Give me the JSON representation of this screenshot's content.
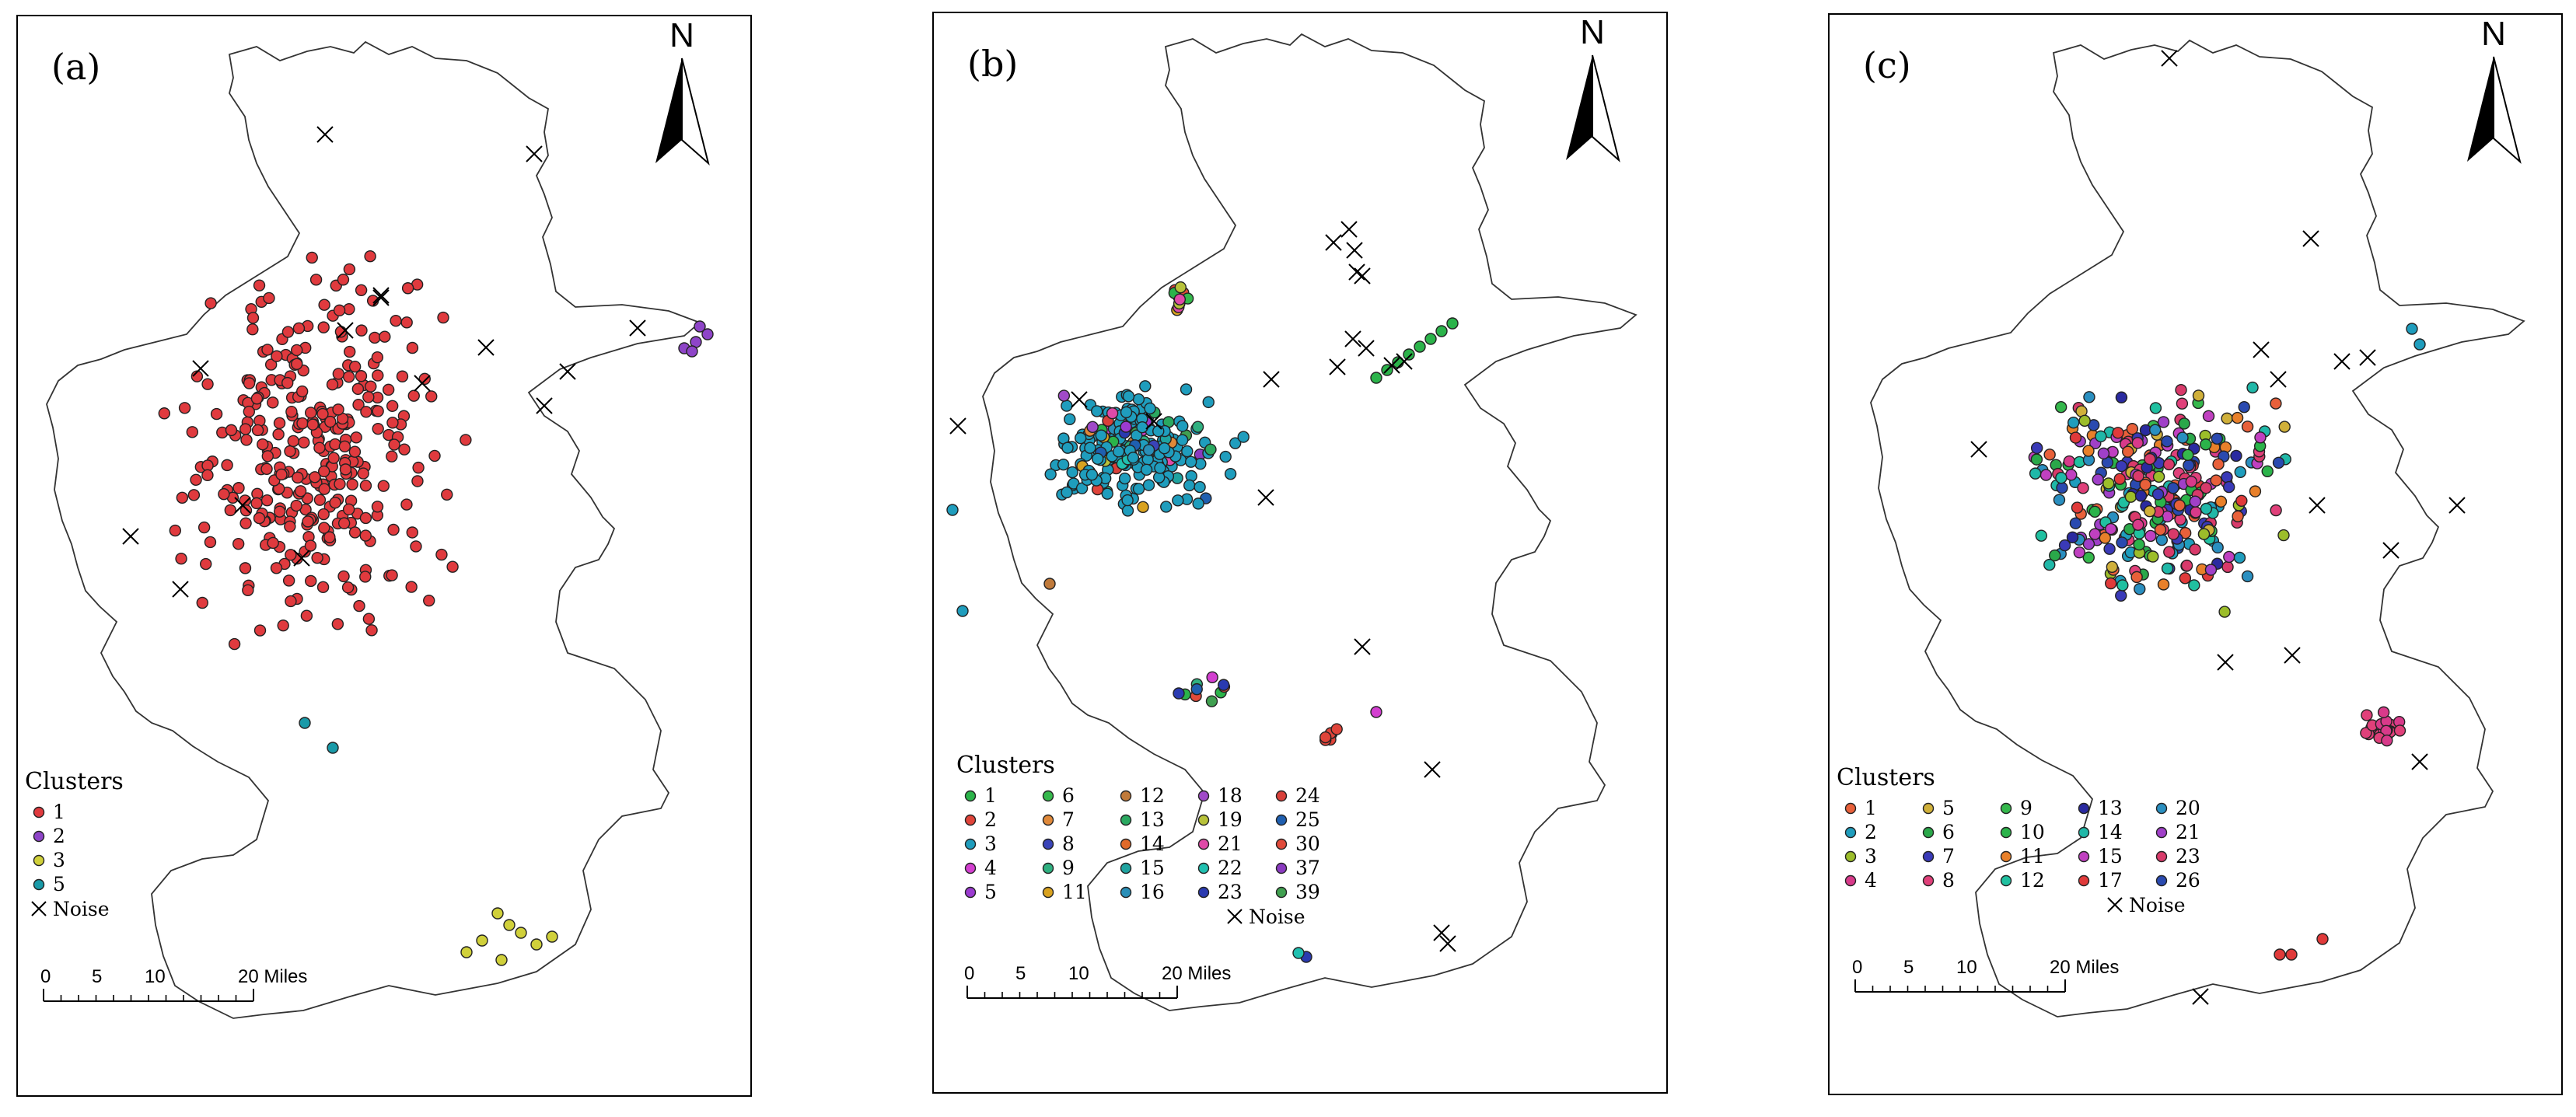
{
  "north_label": "N",
  "legend_title": "Clusters",
  "noise_label": "Noise",
  "scale_ticks": [
    "0",
    "5",
    "10",
    "20 Miles"
  ],
  "panels": [
    {
      "id": "a",
      "label": "(a)",
      "legend_columns": [
        [
          "1",
          "2",
          "3",
          "5"
        ]
      ],
      "cluster_colors": {
        "1": "#e03a3e",
        "2": "#8e44c8",
        "3": "#d0d03a",
        "5": "#199aa8"
      }
    },
    {
      "id": "b",
      "label": "(b)",
      "legend_columns": [
        [
          "1",
          "2",
          "3",
          "4",
          "5"
        ],
        [
          "6",
          "7",
          "8",
          "9",
          "11"
        ],
        [
          "12",
          "13",
          "14",
          "15",
          "16"
        ],
        [
          "18",
          "19",
          "21",
          "22",
          "23"
        ],
        [
          "24",
          "25",
          "30",
          "37",
          "39"
        ]
      ],
      "cluster_colors": {
        "1": "#2bb34a",
        "2": "#e0443a",
        "3": "#1f9dbd",
        "4": "#d33fd0",
        "5": "#9b3bd0",
        "6": "#35b84c",
        "7": "#e0893a",
        "8": "#3a44b8",
        "9": "#2fb080",
        "11": "#d9a21f",
        "12": "#c07a3a",
        "13": "#2aa860",
        "14": "#e06a2a",
        "15": "#1fa3a0",
        "16": "#2a8fb8",
        "18": "#a04ac8",
        "19": "#b8c23a",
        "21": "#e04aa8",
        "22": "#20c0b0",
        "23": "#2a3ab0",
        "24": "#d8403a",
        "25": "#1f5fb0",
        "30": "#e04a3a",
        "37": "#8a3ac0",
        "39": "#40a050"
      }
    },
    {
      "id": "c",
      "label": "(c)",
      "legend_columns": [
        [
          "1",
          "2",
          "3",
          "4"
        ],
        [
          "5",
          "6",
          "7",
          "8"
        ],
        [
          "9",
          "10",
          "11",
          "12"
        ],
        [
          "13",
          "14",
          "15",
          "17"
        ],
        [
          "20",
          "21",
          "23",
          "26"
        ]
      ],
      "cluster_colors": {
        "1": "#e8603a",
        "2": "#1f9dbd",
        "3": "#9cbd2a",
        "4": "#d83a8a",
        "5": "#d0b03a",
        "6": "#2aa84a",
        "7": "#3a3ab8",
        "8": "#e0407a",
        "9": "#35b84c",
        "10": "#2bb34a",
        "11": "#e8802a",
        "12": "#20c0a0",
        "13": "#2a2aa0",
        "14": "#20b8a8",
        "15": "#c040c0",
        "17": "#e03a3a",
        "20": "#2a8fc0",
        "21": "#a040c8",
        "23": "#d83a6a",
        "26": "#2a4ab0"
      }
    }
  ]
}
